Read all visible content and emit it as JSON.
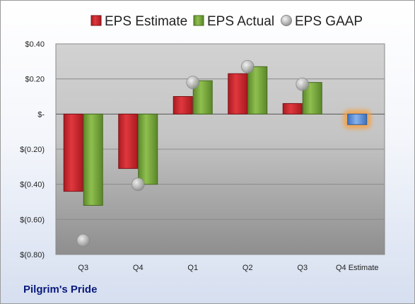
{
  "company_name": "Pilgrim's Pride",
  "chart_data": {
    "type": "bar",
    "categories": [
      "Q3",
      "Q4",
      "Q1",
      "Q2",
      "Q3",
      "Q4 Estimate"
    ],
    "series": [
      {
        "name": "EPS Estimate",
        "type": "bar",
        "color": "#c8262c",
        "values": [
          -0.44,
          -0.31,
          0.1,
          0.23,
          0.06,
          null
        ]
      },
      {
        "name": "EPS Actual",
        "type": "bar",
        "color": "#77a03a",
        "values": [
          -0.52,
          -0.4,
          0.19,
          0.27,
          0.18,
          null
        ]
      },
      {
        "name": "EPS GAAP",
        "type": "marker",
        "color": "#b5b5b5",
        "values": [
          -0.72,
          -0.4,
          0.18,
          0.27,
          0.17,
          null
        ]
      },
      {
        "name": "",
        "type": "bar",
        "color": "#5b8fd6",
        "highlight": "#f5a142",
        "values": [
          null,
          null,
          null,
          null,
          null,
          -0.06
        ]
      }
    ],
    "legend": {
      "position": "top"
    },
    "ylim": [
      -0.8,
      0.4
    ],
    "yticks": [
      0.4,
      0.2,
      0,
      -0.2,
      -0.4,
      -0.6,
      -0.8
    ],
    "ytick_labels": [
      "$0.40",
      "$0.20",
      "$-",
      "$(0.20)",
      "$(0.40)",
      "$(0.60)",
      "$(0.80)"
    ],
    "grid": true,
    "xlabel": "",
    "ylabel": ""
  }
}
